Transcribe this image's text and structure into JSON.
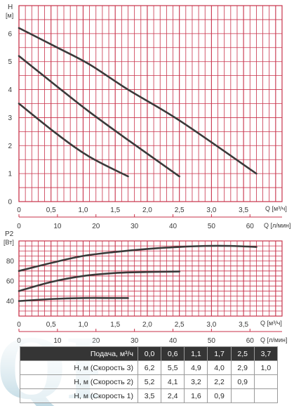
{
  "colors": {
    "grid": "#c8324a",
    "curve": "#3a3a3a",
    "table_header_bg": "#353535",
    "logo": "#aecbd6"
  },
  "logo": {
    "text": "QP"
  },
  "chart_data": [
    {
      "type": "line",
      "ylabel": "H",
      "yunit": "[м]",
      "xlabel": "Q [м³/ч]",
      "xlabel2": "Q [л/мин]",
      "xlim": [
        0,
        4.1
      ],
      "ylim": [
        0,
        7
      ],
      "xticks": [
        "0",
        "0,5",
        "1,0",
        "1,5",
        "2,0",
        "2,5",
        "3,0",
        "3,5"
      ],
      "xticks_values": [
        0,
        0.5,
        1.0,
        1.5,
        2.0,
        2.5,
        3.0,
        3.5
      ],
      "xticks2": [
        "0",
        "10",
        "20",
        "30",
        "40",
        "50",
        "60"
      ],
      "xticks2_values_m3h": [
        0,
        0.6,
        1.2,
        1.8,
        2.4,
        3.0,
        3.6
      ],
      "yticks": [
        "0",
        "1",
        "2",
        "3",
        "4",
        "5",
        "6"
      ],
      "yticks_values": [
        0,
        1,
        2,
        3,
        4,
        5,
        6
      ],
      "grid": true,
      "series": [
        {
          "x": [
            0,
            0.6,
            1.1,
            1.7,
            2.5,
            3.7
          ],
          "y": [
            6.2,
            5.5,
            4.9,
            4.0,
            2.9,
            1.0
          ]
        },
        {
          "x": [
            0,
            0.6,
            1.1,
            1.7,
            2.5
          ],
          "y": [
            5.2,
            4.1,
            3.2,
            2.2,
            0.9
          ]
        },
        {
          "x": [
            0,
            0.6,
            1.1,
            1.7
          ],
          "y": [
            3.5,
            2.4,
            1.6,
            0.9
          ]
        }
      ]
    },
    {
      "type": "line",
      "ylabel": "P2",
      "yunit": "[Вт]",
      "xlabel": "Q [м³/ч]",
      "xlabel2": "Q [л/мин]",
      "xlim": [
        0,
        4.1
      ],
      "ylim": [
        25,
        100
      ],
      "xticks": [
        "0",
        "0,5",
        "1,0",
        "1,5",
        "2,0",
        "2,5",
        "3,0",
        "3,5"
      ],
      "xticks_values": [
        0,
        0.5,
        1.0,
        1.5,
        2.0,
        2.5,
        3.0,
        3.5
      ],
      "xticks2": [
        "0",
        "10",
        "20",
        "30",
        "40",
        "50",
        "60"
      ],
      "xticks2_values_m3h": [
        0,
        0.6,
        1.2,
        1.8,
        2.4,
        3.0,
        3.6
      ],
      "yticks": [
        "40",
        "60",
        "80"
      ],
      "yticks_values": [
        40,
        60,
        80
      ],
      "grid": true,
      "series": [
        {
          "x": [
            0,
            0.5,
            1.0,
            1.5,
            2.0,
            2.5,
            2.9,
            3.3,
            3.7
          ],
          "y": [
            70,
            78,
            85,
            89,
            92,
            94,
            95,
            95,
            94
          ]
        },
        {
          "x": [
            0,
            0.5,
            1.0,
            1.5,
            2.0,
            2.5
          ],
          "y": [
            50,
            59,
            65,
            68,
            69,
            69.5
          ]
        },
        {
          "x": [
            0,
            0.5,
            1.0,
            1.5,
            1.7
          ],
          "y": [
            40,
            42,
            43,
            43,
            43
          ]
        }
      ]
    }
  ],
  "table": {
    "header_label": "Подача, м³/ч",
    "flows": [
      "0,0",
      "0,6",
      "1,1",
      "1,7",
      "2,5",
      "3,7"
    ],
    "rows": [
      {
        "label": "Н, м (Скорость 3)",
        "values": [
          "6,2",
          "5,5",
          "4,9",
          "4,0",
          "2,9",
          "1,0"
        ]
      },
      {
        "label": "Н, м (Скорость 2)",
        "values": [
          "5,2",
          "4,1",
          "3,2",
          "2,2",
          "0,9",
          ""
        ]
      },
      {
        "label": "Н, м (Скорость 1)",
        "values": [
          "3,5",
          "2,4",
          "1,6",
          "0,9",
          "",
          ""
        ]
      }
    ]
  }
}
